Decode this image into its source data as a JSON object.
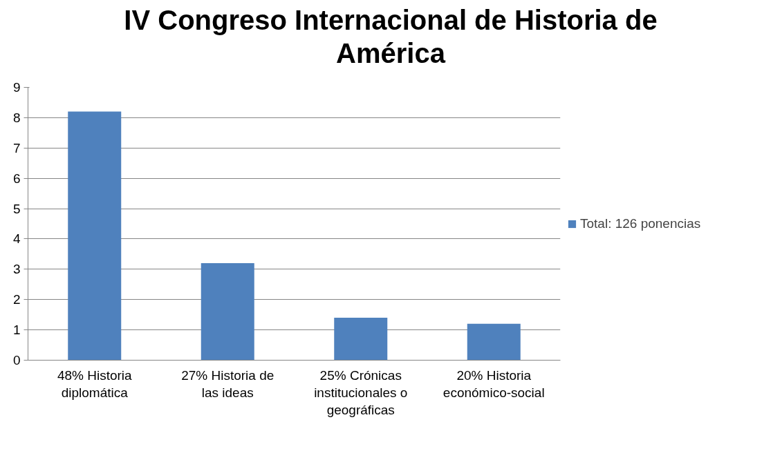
{
  "chart_data": {
    "type": "bar",
    "title": "IV Congreso Internacional de Historia de América",
    "categories": [
      "48% Historia diplomática",
      "27% Historia de las ideas",
      "25% Crónicas institucionales o geográficas",
      "20% Historia económico-social"
    ],
    "series": [
      {
        "name": "Total: 126 ponencias",
        "color": "#4f81bd",
        "values": [
          8.2,
          3.2,
          1.4,
          1.2
        ]
      }
    ],
    "ylim": [
      0,
      9
    ],
    "yticks": [
      0,
      1,
      2,
      3,
      4,
      5,
      6,
      7,
      8,
      9
    ],
    "grid": "y",
    "legend": "right"
  }
}
